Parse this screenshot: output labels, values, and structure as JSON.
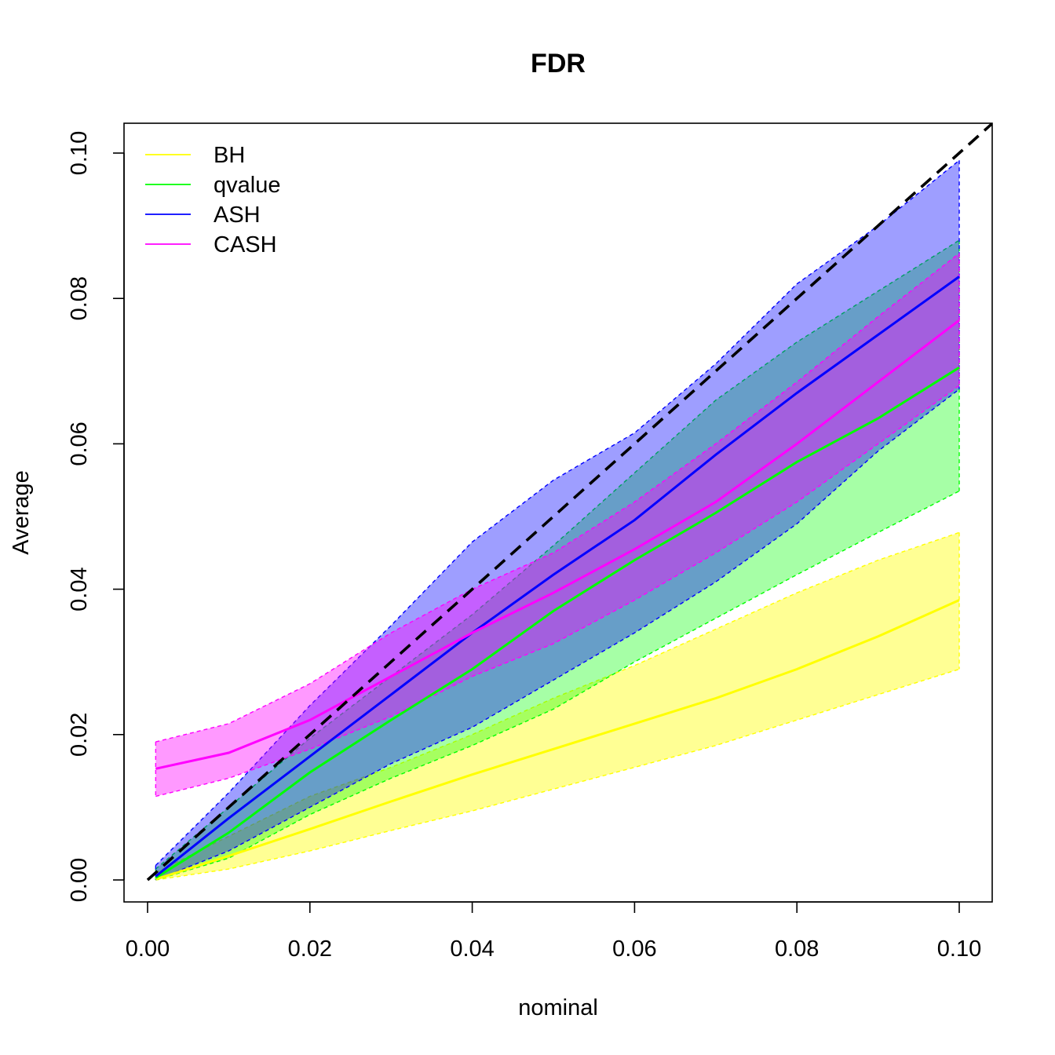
{
  "chart_data": {
    "type": "line",
    "title": "FDR",
    "xlabel": "nominal",
    "ylabel": "Average",
    "xlim": [
      0,
      0.1
    ],
    "ylim": [
      0,
      0.1
    ],
    "x_ticks": [
      "0.00",
      "0.02",
      "0.04",
      "0.06",
      "0.08",
      "0.10"
    ],
    "y_ticks": [
      "0.00",
      "0.02",
      "0.04",
      "0.06",
      "0.08",
      "0.10"
    ],
    "legend_position": "top-left",
    "reference_line": {
      "style": "dashed",
      "color": "#000000",
      "slope": 1,
      "intercept": 0
    },
    "x": [
      0.001,
      0.01,
      0.02,
      0.03,
      0.04,
      0.05,
      0.06,
      0.07,
      0.08,
      0.09,
      0.1
    ],
    "series": [
      {
        "name": "BH",
        "color": "#ffff00",
        "band_fill": "rgba(255,255,0,0.42)",
        "mean": [
          0.0001,
          0.0033,
          0.007,
          0.0108,
          0.0145,
          0.018,
          0.0215,
          0.025,
          0.029,
          0.0335,
          0.0385
        ],
        "lower": [
          0.0,
          0.0015,
          0.004,
          0.0068,
          0.0095,
          0.0125,
          0.0155,
          0.0185,
          0.022,
          0.0255,
          0.029
        ],
        "upper": [
          0.001,
          0.006,
          0.0115,
          0.0155,
          0.02,
          0.025,
          0.0295,
          0.0345,
          0.0395,
          0.044,
          0.0478
        ]
      },
      {
        "name": "qvalue",
        "color": "#00ff00",
        "band_fill": "rgba(0,255,0,0.35)",
        "mean": [
          0.0003,
          0.0065,
          0.0148,
          0.022,
          0.029,
          0.037,
          0.044,
          0.0505,
          0.0575,
          0.0635,
          0.0705
        ],
        "lower": [
          0.0,
          0.003,
          0.009,
          0.014,
          0.0185,
          0.0235,
          0.03,
          0.036,
          0.042,
          0.0478,
          0.0535
        ],
        "upper": [
          0.0015,
          0.01,
          0.0195,
          0.028,
          0.0365,
          0.046,
          0.056,
          0.066,
          0.074,
          0.081,
          0.088
        ]
      },
      {
        "name": "ASH",
        "color": "#0000ff",
        "band_fill": "rgba(0,0,255,0.38)",
        "mean": [
          0.0005,
          0.0085,
          0.017,
          0.0255,
          0.034,
          0.042,
          0.0495,
          0.0585,
          0.067,
          0.075,
          0.083
        ],
        "lower": [
          0.0,
          0.004,
          0.01,
          0.016,
          0.021,
          0.0275,
          0.034,
          0.041,
          0.049,
          0.059,
          0.0675
        ],
        "upper": [
          0.002,
          0.012,
          0.024,
          0.035,
          0.0465,
          0.055,
          0.0615,
          0.071,
          0.082,
          0.09,
          0.099
        ]
      },
      {
        "name": "CASH",
        "color": "#ff00ff",
        "band_fill": "rgba(255,0,255,0.40)",
        "mean": [
          0.0153,
          0.0175,
          0.022,
          0.028,
          0.034,
          0.0395,
          0.0455,
          0.052,
          0.06,
          0.0685,
          0.077
        ],
        "lower": [
          0.0115,
          0.014,
          0.018,
          0.0225,
          0.028,
          0.0325,
          0.0385,
          0.045,
          0.052,
          0.06,
          0.068
        ],
        "upper": [
          0.019,
          0.0215,
          0.027,
          0.034,
          0.04,
          0.045,
          0.052,
          0.06,
          0.0685,
          0.0775,
          0.0862
        ]
      }
    ]
  }
}
